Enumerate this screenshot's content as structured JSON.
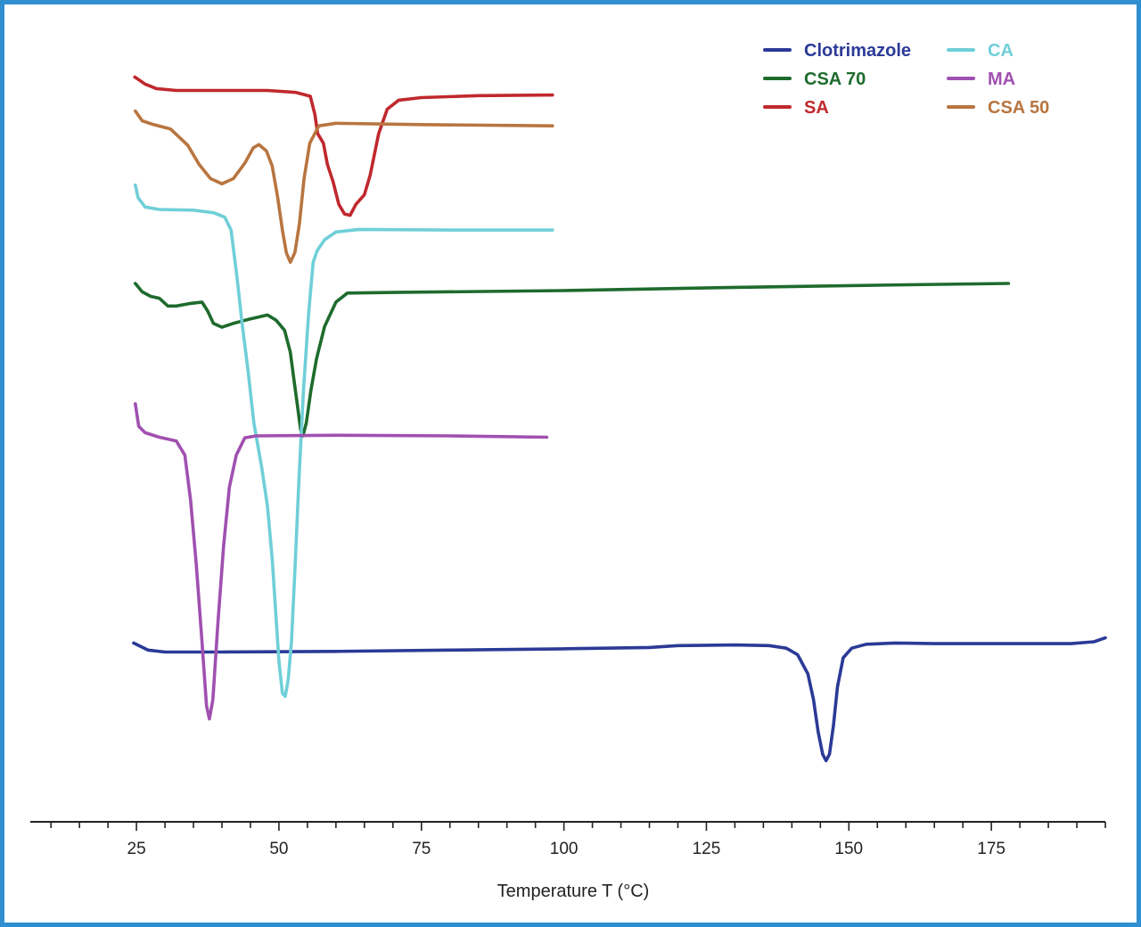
{
  "chart_data": {
    "type": "line",
    "title": "",
    "xlabel": "Temperature T (°C)",
    "ylabel": "",
    "xlim": [
      7,
      195
    ],
    "ylim": [
      -11.5,
      1
    ],
    "grid": false,
    "x_ticks": [
      25,
      50,
      75,
      100,
      125,
      150,
      175
    ],
    "x_minor_step": 5,
    "legend_position": "top-right",
    "series": [
      {
        "name": "Clotrimazole",
        "color": "#2b3a97",
        "points": [
          [
            24.5,
            -8.72
          ],
          [
            27,
            -8.83
          ],
          [
            30,
            -8.86
          ],
          [
            40,
            -8.86
          ],
          [
            60,
            -8.85
          ],
          [
            80,
            -8.83
          ],
          [
            100,
            -8.81
          ],
          [
            115,
            -8.79
          ],
          [
            120,
            -8.76
          ],
          [
            130,
            -8.75
          ],
          [
            136,
            -8.76
          ],
          [
            139,
            -8.8
          ],
          [
            141,
            -8.9
          ],
          [
            142.8,
            -9.2
          ],
          [
            143.8,
            -9.6
          ],
          [
            144.6,
            -10.1
          ],
          [
            145.4,
            -10.45
          ],
          [
            146,
            -10.55
          ],
          [
            146.6,
            -10.45
          ],
          [
            147.3,
            -10.0
          ],
          [
            148,
            -9.4
          ],
          [
            149,
            -8.95
          ],
          [
            150.5,
            -8.8
          ],
          [
            153,
            -8.74
          ],
          [
            158,
            -8.72
          ],
          [
            165,
            -8.73
          ],
          [
            180,
            -8.73
          ],
          [
            189,
            -8.73
          ],
          [
            193,
            -8.7
          ],
          [
            195,
            -8.64
          ]
        ]
      },
      {
        "name": "CSA 70",
        "color": "#1e6b2d",
        "points": [
          [
            24.8,
            -3.13
          ],
          [
            26,
            -3.26
          ],
          [
            27.5,
            -3.33
          ],
          [
            29,
            -3.36
          ],
          [
            30.5,
            -3.48
          ],
          [
            32,
            -3.48
          ],
          [
            34.5,
            -3.44
          ],
          [
            36.5,
            -3.42
          ],
          [
            37.5,
            -3.56
          ],
          [
            38.5,
            -3.75
          ],
          [
            40,
            -3.81
          ],
          [
            42,
            -3.75
          ],
          [
            45,
            -3.68
          ],
          [
            48,
            -3.62
          ],
          [
            49.5,
            -3.7
          ],
          [
            51,
            -3.86
          ],
          [
            52,
            -4.2
          ],
          [
            52.6,
            -4.6
          ],
          [
            53.2,
            -5.0
          ],
          [
            53.8,
            -5.4
          ],
          [
            54.2,
            -5.5
          ],
          [
            54.8,
            -5.3
          ],
          [
            55.6,
            -4.8
          ],
          [
            56.6,
            -4.3
          ],
          [
            58,
            -3.8
          ],
          [
            60,
            -3.42
          ],
          [
            62,
            -3.28
          ],
          [
            70,
            -3.27
          ],
          [
            100,
            -3.24
          ],
          [
            130,
            -3.19
          ],
          [
            160,
            -3.15
          ],
          [
            178,
            -3.13
          ]
        ]
      },
      {
        "name": "SA",
        "color": "#c0282d",
        "points": [
          [
            24.7,
            0.08
          ],
          [
            26.5,
            -0.03
          ],
          [
            28.5,
            -0.1
          ],
          [
            32,
            -0.13
          ],
          [
            40,
            -0.13
          ],
          [
            48,
            -0.13
          ],
          [
            53,
            -0.16
          ],
          [
            55.5,
            -0.22
          ],
          [
            56.3,
            -0.5
          ],
          [
            56.8,
            -0.8
          ],
          [
            57.8,
            -0.95
          ],
          [
            58.5,
            -1.28
          ],
          [
            59.5,
            -1.55
          ],
          [
            60.5,
            -1.9
          ],
          [
            61.5,
            -2.05
          ],
          [
            62.5,
            -2.07
          ],
          [
            63.5,
            -1.9
          ],
          [
            65,
            -1.75
          ],
          [
            66,
            -1.45
          ],
          [
            67.5,
            -0.8
          ],
          [
            69,
            -0.42
          ],
          [
            71,
            -0.28
          ],
          [
            75,
            -0.24
          ],
          [
            85,
            -0.21
          ],
          [
            98,
            -0.2
          ]
        ]
      },
      {
        "name": "CA",
        "color": "#6fcfd8",
        "points": [
          [
            24.8,
            -1.6
          ],
          [
            25.3,
            -1.8
          ],
          [
            26.5,
            -1.94
          ],
          [
            29,
            -1.98
          ],
          [
            35,
            -1.99
          ],
          [
            38.5,
            -2.03
          ],
          [
            40.5,
            -2.1
          ],
          [
            41.6,
            -2.3
          ],
          [
            42.6,
            -3.0
          ],
          [
            43.6,
            -3.8
          ],
          [
            44.6,
            -4.5
          ],
          [
            45.6,
            -5.3
          ],
          [
            47,
            -6.0
          ],
          [
            48,
            -6.6
          ],
          [
            48.8,
            -7.4
          ],
          [
            49.4,
            -8.2
          ],
          [
            50,
            -9.0
          ],
          [
            50.6,
            -9.5
          ],
          [
            51.1,
            -9.55
          ],
          [
            51.6,
            -9.3
          ],
          [
            52.2,
            -8.7
          ],
          [
            52.8,
            -7.6
          ],
          [
            53.5,
            -6.2
          ],
          [
            54.3,
            -4.8
          ],
          [
            55.2,
            -3.6
          ],
          [
            56,
            -2.8
          ],
          [
            56.7,
            -2.62
          ],
          [
            58,
            -2.45
          ],
          [
            60,
            -2.33
          ],
          [
            64,
            -2.29
          ],
          [
            80,
            -2.3
          ],
          [
            98,
            -2.3
          ]
        ]
      },
      {
        "name": "MA",
        "color": "#a050b0",
        "points": [
          [
            24.8,
            -5.0
          ],
          [
            25.4,
            -5.35
          ],
          [
            26.5,
            -5.45
          ],
          [
            29,
            -5.52
          ],
          [
            32,
            -5.58
          ],
          [
            33.5,
            -5.8
          ],
          [
            34.5,
            -6.5
          ],
          [
            35.5,
            -7.5
          ],
          [
            36.5,
            -8.7
          ],
          [
            37.3,
            -9.7
          ],
          [
            37.8,
            -9.9
          ],
          [
            38.4,
            -9.6
          ],
          [
            39.3,
            -8.4
          ],
          [
            40.3,
            -7.2
          ],
          [
            41.3,
            -6.3
          ],
          [
            42.5,
            -5.8
          ],
          [
            44,
            -5.53
          ],
          [
            46,
            -5.5
          ],
          [
            60,
            -5.49
          ],
          [
            80,
            -5.5
          ],
          [
            97,
            -5.52
          ]
        ]
      },
      {
        "name": "CSA 50",
        "color": "#b87540",
        "points": [
          [
            24.8,
            -0.45
          ],
          [
            26,
            -0.6
          ],
          [
            28,
            -0.66
          ],
          [
            31,
            -0.73
          ],
          [
            34,
            -0.98
          ],
          [
            36,
            -1.28
          ],
          [
            38,
            -1.5
          ],
          [
            40,
            -1.58
          ],
          [
            42,
            -1.5
          ],
          [
            44,
            -1.26
          ],
          [
            45.5,
            -1.02
          ],
          [
            46.5,
            -0.97
          ],
          [
            47.8,
            -1.07
          ],
          [
            48.8,
            -1.3
          ],
          [
            49.8,
            -1.8
          ],
          [
            50.6,
            -2.3
          ],
          [
            51.3,
            -2.65
          ],
          [
            52,
            -2.8
          ],
          [
            52.8,
            -2.65
          ],
          [
            53.6,
            -2.2
          ],
          [
            54.4,
            -1.5
          ],
          [
            55.4,
            -0.95
          ],
          [
            57,
            -0.68
          ],
          [
            60,
            -0.64
          ],
          [
            75,
            -0.66
          ],
          [
            98,
            -0.68
          ]
        ]
      }
    ]
  }
}
